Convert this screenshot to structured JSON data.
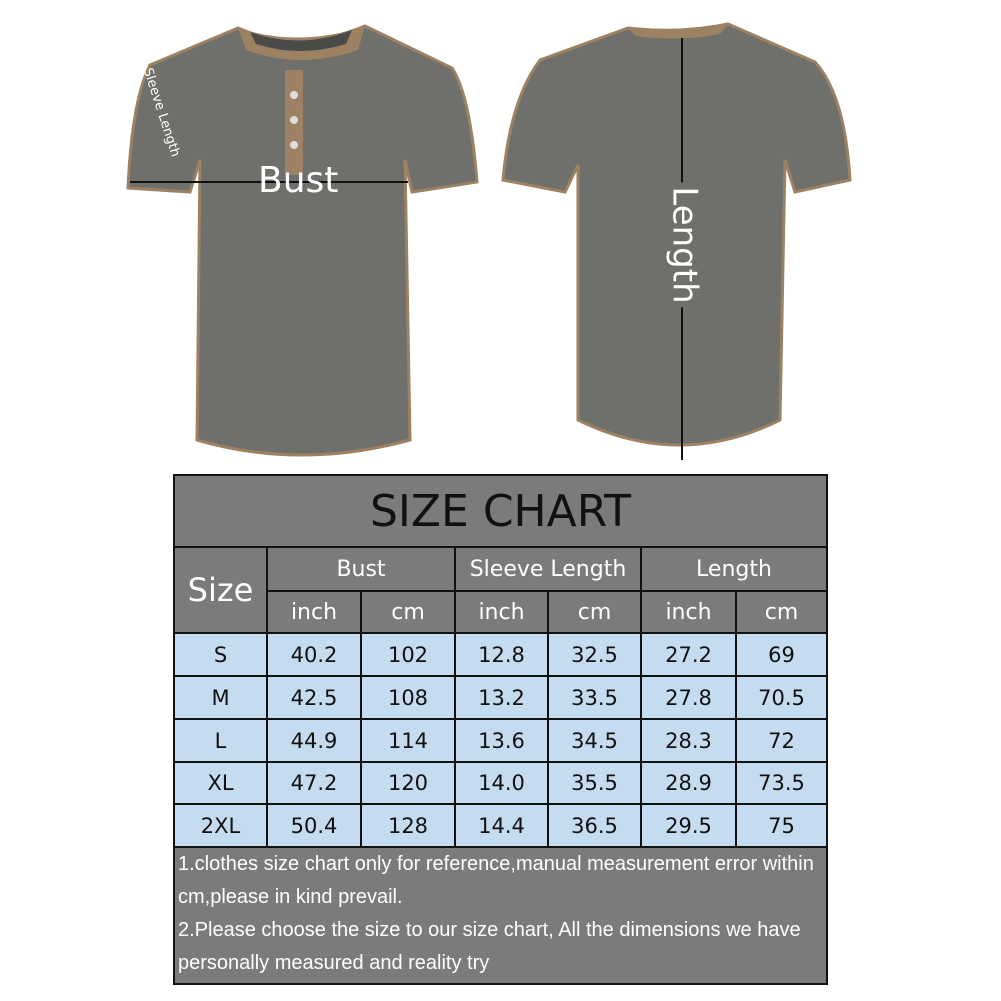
{
  "diagram": {
    "front_label_bust": "Bust",
    "front_label_sleeve": "Sleeve Length",
    "back_label_length": "Length",
    "shirt_color": "#6f706c",
    "trim_color": "#9c8163"
  },
  "size_chart": {
    "title": "SIZE CHART",
    "size_header": "Size",
    "groups": [
      "Bust",
      "Sleeve Length",
      "Length"
    ],
    "units": [
      "inch",
      "cm",
      "inch",
      "cm",
      "inch",
      "cm"
    ],
    "rows": [
      [
        "S",
        "40.2",
        "102",
        "12.8",
        "32.5",
        "27.2",
        "69"
      ],
      [
        "M",
        "42.5",
        "108",
        "13.2",
        "33.5",
        "27.8",
        "70.5"
      ],
      [
        "L",
        "44.9",
        "114",
        "13.6",
        "34.5",
        "28.3",
        "72"
      ],
      [
        "XL",
        "47.2",
        "120",
        "14.0",
        "35.5",
        "28.9",
        "73.5"
      ],
      [
        "2XL",
        "50.4",
        "128",
        "14.4",
        "36.5",
        "29.5",
        "75"
      ]
    ],
    "notes": [
      "1.clothes size chart only for reference,manual measurement error within cm,please in kind prevail.",
      "2.Please choose the size to our size chart, All the dimensions we have personally measured and reality try"
    ]
  }
}
